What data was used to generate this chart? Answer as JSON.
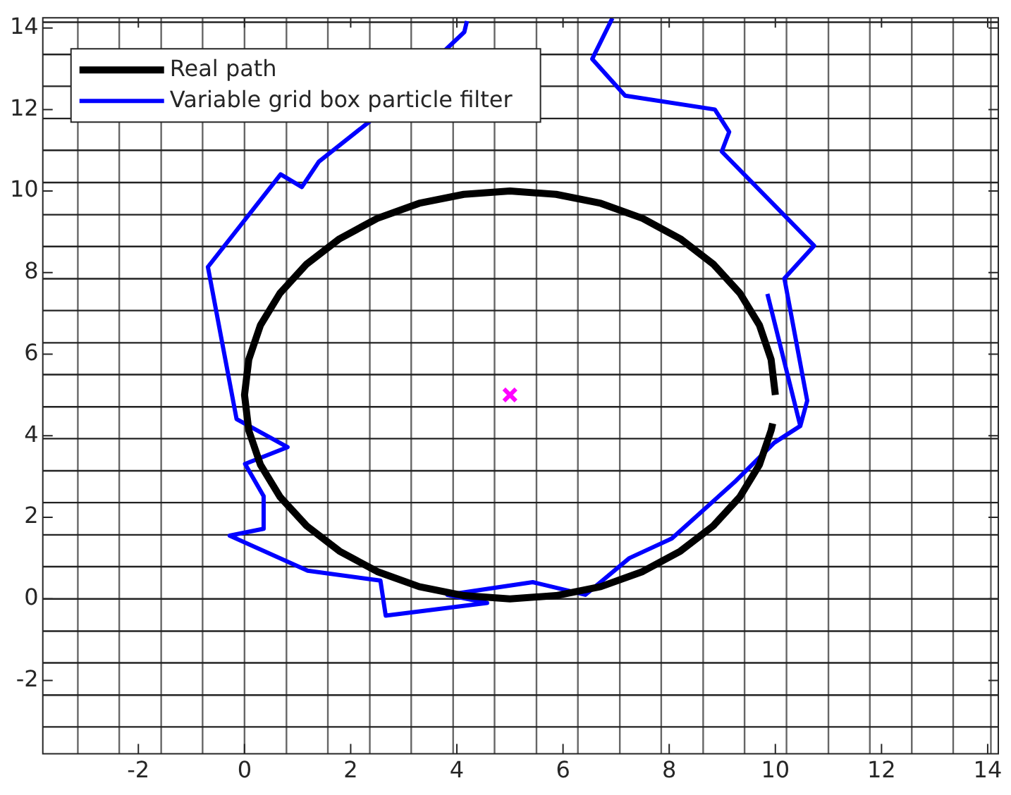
{
  "chart_data": {
    "type": "line",
    "xlim": [
      -3.8,
      14.2
    ],
    "ylim": [
      -3.8,
      14.25
    ],
    "xticks": [
      -2,
      0,
      2,
      4,
      6,
      8,
      10,
      12,
      14
    ],
    "yticks": [
      -2,
      0,
      2,
      4,
      6,
      8,
      10,
      12,
      14
    ],
    "grid": false,
    "legend": "top left",
    "marker": "none",
    "series": [
      {
        "name": "Real path",
        "color": "#000000",
        "x": [
          10,
          9.92,
          9.7,
          9.33,
          8.83,
          8.21,
          7.5,
          6.71,
          5.87,
          5,
          4.13,
          3.29,
          2.5,
          1.79,
          1.17,
          0.67,
          0.3,
          0.08,
          0,
          0.08,
          0.3,
          0.67,
          1.17,
          1.79,
          2.5,
          3.29,
          4.13,
          5,
          5.87,
          6.71,
          7.5,
          8.21,
          8.83,
          9.33,
          9.7,
          9.92,
          9.95
        ],
        "values": [
          5,
          5.87,
          6.71,
          7.5,
          8.21,
          8.83,
          9.33,
          9.7,
          9.92,
          10,
          9.92,
          9.7,
          9.33,
          8.83,
          8.21,
          7.5,
          6.71,
          5.87,
          5,
          4.13,
          3.29,
          2.5,
          1.79,
          1.17,
          0.67,
          0.3,
          0.08,
          0,
          0.08,
          0.3,
          0.67,
          1.17,
          1.79,
          2.5,
          3.29,
          4.13,
          4.3
        ]
      },
      {
        "name": "Variable grid box particle filter",
        "color": "#0000ff",
        "x": [
          9.85,
          10.47,
          10.6,
          10.17,
          10.73,
          8.99,
          9.13,
          8.86,
          7.17,
          6.55,
          6.93,
          5.5,
          4.19,
          4.14,
          2.34,
          1.4,
          1.08,
          0.68,
          -0.69,
          -0.15,
          0.81,
          0.01,
          0.36,
          0.36,
          -0.28,
          1.19,
          2.56,
          2.66,
          4.57,
          3.82,
          5.43,
          6.42,
          7.25,
          8.05,
          9.26,
          9.98,
          10.47
        ],
        "values": [
          7.48,
          4.24,
          4.86,
          7.86,
          8.66,
          10.97,
          11.45,
          12.0,
          12.34,
          13.24,
          14.24,
          null,
          14.17,
          13.9,
          11.69,
          10.72,
          10.1,
          10.41,
          8.14,
          4.41,
          3.72,
          3.31,
          2.52,
          1.72,
          1.55,
          0.69,
          0.45,
          -0.41,
          -0.1,
          0.1,
          0.41,
          0.1,
          1.0,
          1.48,
          2.9,
          3.83,
          4.24
        ]
      },
      {
        "type": "scatter",
        "marker": "cross",
        "color": "#ff00ff",
        "x": [
          5
        ],
        "values": [
          5
        ]
      }
    ],
    "ref_lines": [
      {
        "axis": "x",
        "value": -3.14
      },
      {
        "axis": "x",
        "value": -2.36
      },
      {
        "axis": "x",
        "value": -1.57
      },
      {
        "axis": "x",
        "value": -0.79
      },
      {
        "axis": "x",
        "value": 0
      },
      {
        "axis": "x",
        "value": 0.79
      },
      {
        "axis": "x",
        "value": 1.57
      },
      {
        "axis": "x",
        "value": 2.36
      },
      {
        "axis": "x",
        "value": 3.14
      },
      {
        "axis": "x",
        "value": 3.93
      },
      {
        "axis": "x",
        "value": 4.71
      },
      {
        "axis": "x",
        "value": 5.5
      },
      {
        "axis": "x",
        "value": 6.28
      },
      {
        "axis": "x",
        "value": 7.07
      },
      {
        "axis": "x",
        "value": 7.85
      },
      {
        "axis": "x",
        "value": 8.64
      },
      {
        "axis": "x",
        "value": 9.42
      },
      {
        "axis": "x",
        "value": 10.21
      },
      {
        "axis": "x",
        "value": 11.0
      },
      {
        "axis": "x",
        "value": 11.78
      },
      {
        "axis": "x",
        "value": 12.57
      },
      {
        "axis": "x",
        "value": 13.35
      },
      {
        "axis": "x",
        "value": 14.06
      },
      {
        "axis": "y",
        "value": -3.14
      },
      {
        "axis": "y",
        "value": -2.36
      },
      {
        "axis": "y",
        "value": -1.57
      },
      {
        "axis": "y",
        "value": -0.79
      },
      {
        "axis": "y",
        "value": 0
      },
      {
        "axis": "y",
        "value": 0.79
      },
      {
        "axis": "y",
        "value": 1.57
      },
      {
        "axis": "y",
        "value": 2.36
      },
      {
        "axis": "y",
        "value": 3.14
      },
      {
        "axis": "y",
        "value": 3.93
      },
      {
        "axis": "y",
        "value": 4.71
      },
      {
        "axis": "y",
        "value": 5.5
      },
      {
        "axis": "y",
        "value": 6.28
      },
      {
        "axis": "y",
        "value": 7.07
      },
      {
        "axis": "y",
        "value": 7.85
      },
      {
        "axis": "y",
        "value": 8.64
      },
      {
        "axis": "y",
        "value": 9.42
      },
      {
        "axis": "y",
        "value": 10.21
      },
      {
        "axis": "y",
        "value": 11.0
      },
      {
        "axis": "y",
        "value": 11.78
      },
      {
        "axis": "y",
        "value": 12.57
      },
      {
        "axis": "y",
        "value": 13.35
      },
      {
        "axis": "y",
        "value": 14.14
      }
    ]
  }
}
